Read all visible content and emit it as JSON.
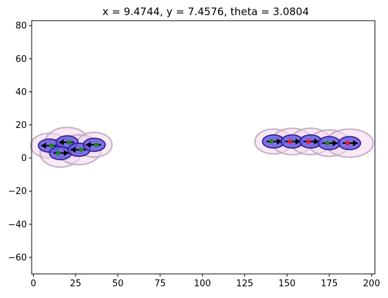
{
  "chart_data": {
    "type": "scatter",
    "title": "x = 9.4744, y = 7.4576, theta = 3.0804",
    "xlabel": "",
    "ylabel": "",
    "xlim": [
      -1,
      202
    ],
    "ylim": [
      -70,
      83
    ],
    "xticks": [
      0,
      25,
      50,
      75,
      100,
      125,
      150,
      175,
      200
    ],
    "yticks": [
      -60,
      -40,
      -20,
      0,
      20,
      40,
      60,
      80
    ],
    "grid": false,
    "legend": "none",
    "colors": {
      "uncertainty_fill": "#f5d6f0",
      "uncertainty_edge": "#b4a0b4",
      "vehicle_fill": "#6a5adf",
      "vehicle_edge": "#1f1f8f",
      "heading_arrow": "#000000",
      "marker_green": "#1a8a1a",
      "marker_red": "#e02020"
    },
    "agents": [
      {
        "group": "left",
        "x": 9.5,
        "y": 7.5,
        "theta": 3.08,
        "uncertainty_rx": 11,
        "uncertainty_ry": 7.5,
        "marker": "green"
      },
      {
        "group": "left",
        "x": 20,
        "y": 9.5,
        "theta": 3.08,
        "uncertainty_rx": 13,
        "uncertainty_ry": 9,
        "marker": "green"
      },
      {
        "group": "left",
        "x": 16,
        "y": 3,
        "theta": 0,
        "uncertainty_rx": 12,
        "uncertainty_ry": 8.5,
        "marker": "green"
      },
      {
        "group": "left",
        "x": 27,
        "y": 5,
        "theta": 3.08,
        "uncertainty_rx": 13,
        "uncertainty_ry": 9,
        "marker": "green"
      },
      {
        "group": "left",
        "x": 36,
        "y": 8,
        "theta": 3.08,
        "uncertainty_rx": 10.5,
        "uncertainty_ry": 7.5,
        "marker": "green"
      },
      {
        "group": "right",
        "x": 142,
        "y": 10,
        "theta": 0,
        "uncertainty_rx": 11,
        "uncertainty_ry": 7.5,
        "marker": "green"
      },
      {
        "group": "right",
        "x": 153,
        "y": 10,
        "theta": 0,
        "uncertainty_rx": 12,
        "uncertainty_ry": 8,
        "marker": "red"
      },
      {
        "group": "right",
        "x": 164,
        "y": 10,
        "theta": 0,
        "uncertainty_rx": 12,
        "uncertainty_ry": 8,
        "marker": "red"
      },
      {
        "group": "right",
        "x": 175,
        "y": 9,
        "theta": 0,
        "uncertainty_rx": 12,
        "uncertainty_ry": 8,
        "marker": "green"
      },
      {
        "group": "right",
        "x": 187,
        "y": 9,
        "theta": 0,
        "uncertainty_rx": 14,
        "uncertainty_ry": 8.5,
        "marker": "red"
      }
    ]
  }
}
